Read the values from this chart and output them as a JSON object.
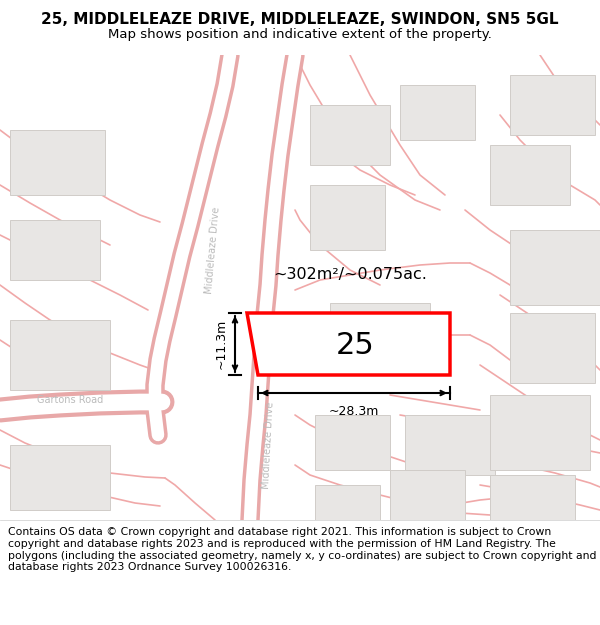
{
  "title": "25, MIDDLELEAZE DRIVE, MIDDLELEAZE, SWINDON, SN5 5GL",
  "subtitle": "Map shows position and indicative extent of the property.",
  "copyright": "Contains OS data © Crown copyright and database right 2021. This information is subject to Crown copyright and database rights 2023 and is reproduced with the permission of HM Land Registry. The polygons (including the associated geometry, namely x, y co-ordinates) are subject to Crown copyright and database rights 2023 Ordnance Survey 100026316.",
  "map_bg": "#ffffff",
  "road_color": "#f0a0a0",
  "building_fc": "#e8e6e4",
  "building_ec": "#d0ccc8",
  "property_ec": "#ff0000",
  "property_fc": "#ffffff",
  "area_text": "~302m²/~0.075ac.",
  "number_text": "25",
  "width_label": "~28.3m",
  "height_label": "~11.3m",
  "title_fontsize": 11,
  "subtitle_fontsize": 9.5,
  "copyright_fontsize": 7.8,
  "road_label_color": "#bbbbbb",
  "road_label_size": 7
}
